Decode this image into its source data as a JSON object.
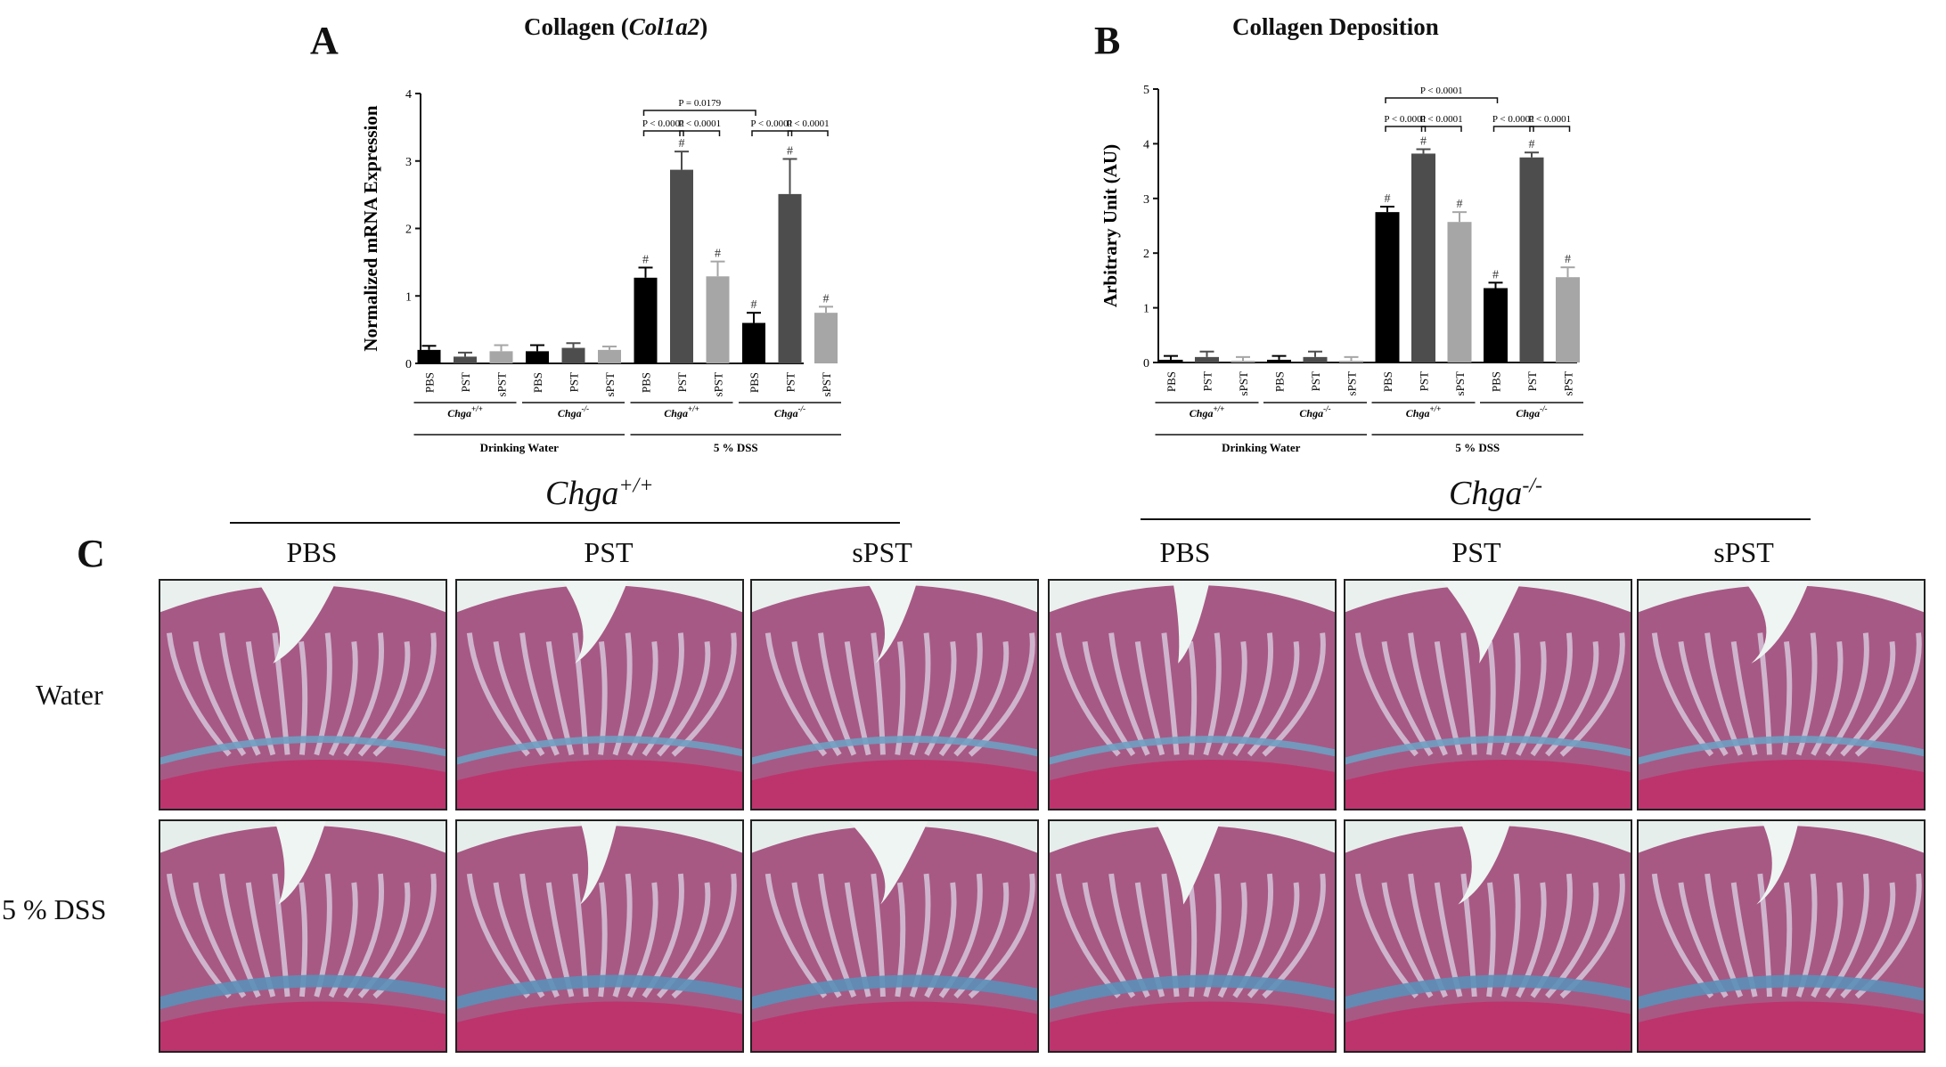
{
  "figure": {
    "panel_a_letter": "A",
    "panel_b_letter": "B",
    "panel_c_letter": "C",
    "title_a_prefix": "Collagen (",
    "title_a_gene": "Col1a2",
    "title_a_suffix": ")",
    "title_b": "Collagen Deposition",
    "micro_genotype_wt_base": "Chga",
    "micro_genotype_wt_sup": "+/+",
    "micro_genotype_ko_base": "Chga",
    "micro_genotype_ko_sup": "-/-",
    "col_labels": [
      "PBS",
      "PST",
      "sPST",
      "PBS",
      "PST",
      "sPST"
    ],
    "row_labels": [
      "Water",
      "5 % DSS"
    ]
  },
  "chart_data": [
    {
      "type": "bar",
      "title": "Collagen (Col1a2)",
      "ylabel": "Normalized mRNA Expression",
      "ylim": [
        0,
        4
      ],
      "yticks": [
        "0",
        "1",
        "2",
        "3",
        "4"
      ],
      "categories": [
        "PBS",
        "PST",
        "sPST",
        "PBS",
        "PST",
        "sPST",
        "PBS",
        "PST",
        "sPST",
        "PBS",
        "PST",
        "sPST"
      ],
      "values": [
        0.2,
        0.1,
        0.18,
        0.18,
        0.23,
        0.2,
        1.27,
        2.87,
        1.29,
        0.6,
        2.51,
        0.75
      ],
      "errors": [
        0.06,
        0.06,
        0.09,
        0.09,
        0.07,
        0.05,
        0.15,
        0.27,
        0.22,
        0.15,
        0.52,
        0.09
      ],
      "bar_colors": [
        "#000000",
        "#4d4d4d",
        "#a6a6a6",
        "#000000",
        "#4d4d4d",
        "#a6a6a6",
        "#000000",
        "#4d4d4d",
        "#a6a6a6",
        "#000000",
        "#4d4d4d",
        "#a6a6a6"
      ],
      "markers": [
        "",
        "",
        "",
        "",
        "",
        "",
        "#",
        "#",
        "#",
        "#",
        "#",
        "#"
      ],
      "genotype_groups": [
        {
          "base": "Chga",
          "sup": "+/+"
        },
        {
          "base": "Chga",
          "sup": "-/-"
        },
        {
          "base": "Chga",
          "sup": "+/+"
        },
        {
          "base": "Chga",
          "sup": "-/-"
        }
      ],
      "treatment_groups": [
        "Drinking Water",
        "5 % DSS"
      ],
      "pvalues": [
        {
          "from": 6,
          "to": 7,
          "label": "P < 0.0001",
          "level": 0
        },
        {
          "from": 7,
          "to": 8,
          "label": "P < 0.0001",
          "level": 0
        },
        {
          "from": 9,
          "to": 10,
          "label": "P < 0.0001",
          "level": 0
        },
        {
          "from": 10,
          "to": 11,
          "label": "P < 0.0001",
          "level": 0
        },
        {
          "from": 6,
          "to": 9,
          "label": "P = 0.0179",
          "level": 1
        }
      ]
    },
    {
      "type": "bar",
      "title": "Collagen Deposition",
      "ylabel": "Arbitrary Unit (AU)",
      "ylim": [
        0,
        5
      ],
      "yticks": [
        "0",
        "1",
        "2",
        "3",
        "4",
        "5"
      ],
      "categories": [
        "PBS",
        "PST",
        "sPST",
        "PBS",
        "PST",
        "sPST",
        "PBS",
        "PST",
        "sPST",
        "PBS",
        "PST",
        "sPST"
      ],
      "values": [
        0.05,
        0.1,
        0.03,
        0.05,
        0.1,
        0.03,
        2.75,
        3.82,
        2.57,
        1.36,
        3.75,
        1.56
      ],
      "errors": [
        0.07,
        0.1,
        0.07,
        0.07,
        0.1,
        0.07,
        0.1,
        0.08,
        0.18,
        0.1,
        0.09,
        0.18
      ],
      "bar_colors": [
        "#000000",
        "#4d4d4d",
        "#a6a6a6",
        "#000000",
        "#4d4d4d",
        "#a6a6a6",
        "#000000",
        "#4d4d4d",
        "#a6a6a6",
        "#000000",
        "#4d4d4d",
        "#a6a6a6"
      ],
      "markers": [
        "",
        "",
        "",
        "",
        "",
        "",
        "#",
        "#",
        "#",
        "#",
        "#",
        "#"
      ],
      "genotype_groups": [
        {
          "base": "Chga",
          "sup": "+/+"
        },
        {
          "base": "Chga",
          "sup": "-/-"
        },
        {
          "base": "Chga",
          "sup": "+/+"
        },
        {
          "base": "Chga",
          "sup": "-/-"
        }
      ],
      "treatment_groups": [
        "Drinking Water",
        "5 % DSS"
      ],
      "pvalues": [
        {
          "from": 6,
          "to": 7,
          "label": "P < 0.0001",
          "level": 0
        },
        {
          "from": 7,
          "to": 8,
          "label": "P < 0.0001",
          "level": 0
        },
        {
          "from": 9,
          "to": 10,
          "label": "P < 0.0001",
          "level": 0
        },
        {
          "from": 10,
          "to": 11,
          "label": "P < 0.0001",
          "level": 0
        },
        {
          "from": 6,
          "to": 9,
          "label": "P < 0.0001",
          "level": 1
        }
      ]
    }
  ]
}
